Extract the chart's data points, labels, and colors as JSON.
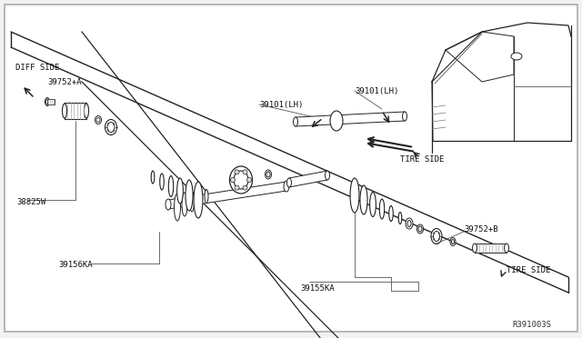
{
  "bg_fill": "#f2f2f2",
  "white": "#ffffff",
  "line_color": "#222222",
  "gray": "#888888",
  "label_fs": 6.5,
  "labels": {
    "diff_side": "DIFF SIDE",
    "part_39752A": "39752+A",
    "part_38825W": "38825W",
    "part_39101LH_1": "39101(LH)",
    "part_39101LH_2": "39101(LH)",
    "part_39156KA": "39156KA",
    "part_39155KA": "39155KA",
    "part_39752B": "39752+B",
    "tire_side_top": "TIRE SIDE",
    "tire_side_bot": "TIRE SIDE",
    "ref_code": "R391003S"
  }
}
